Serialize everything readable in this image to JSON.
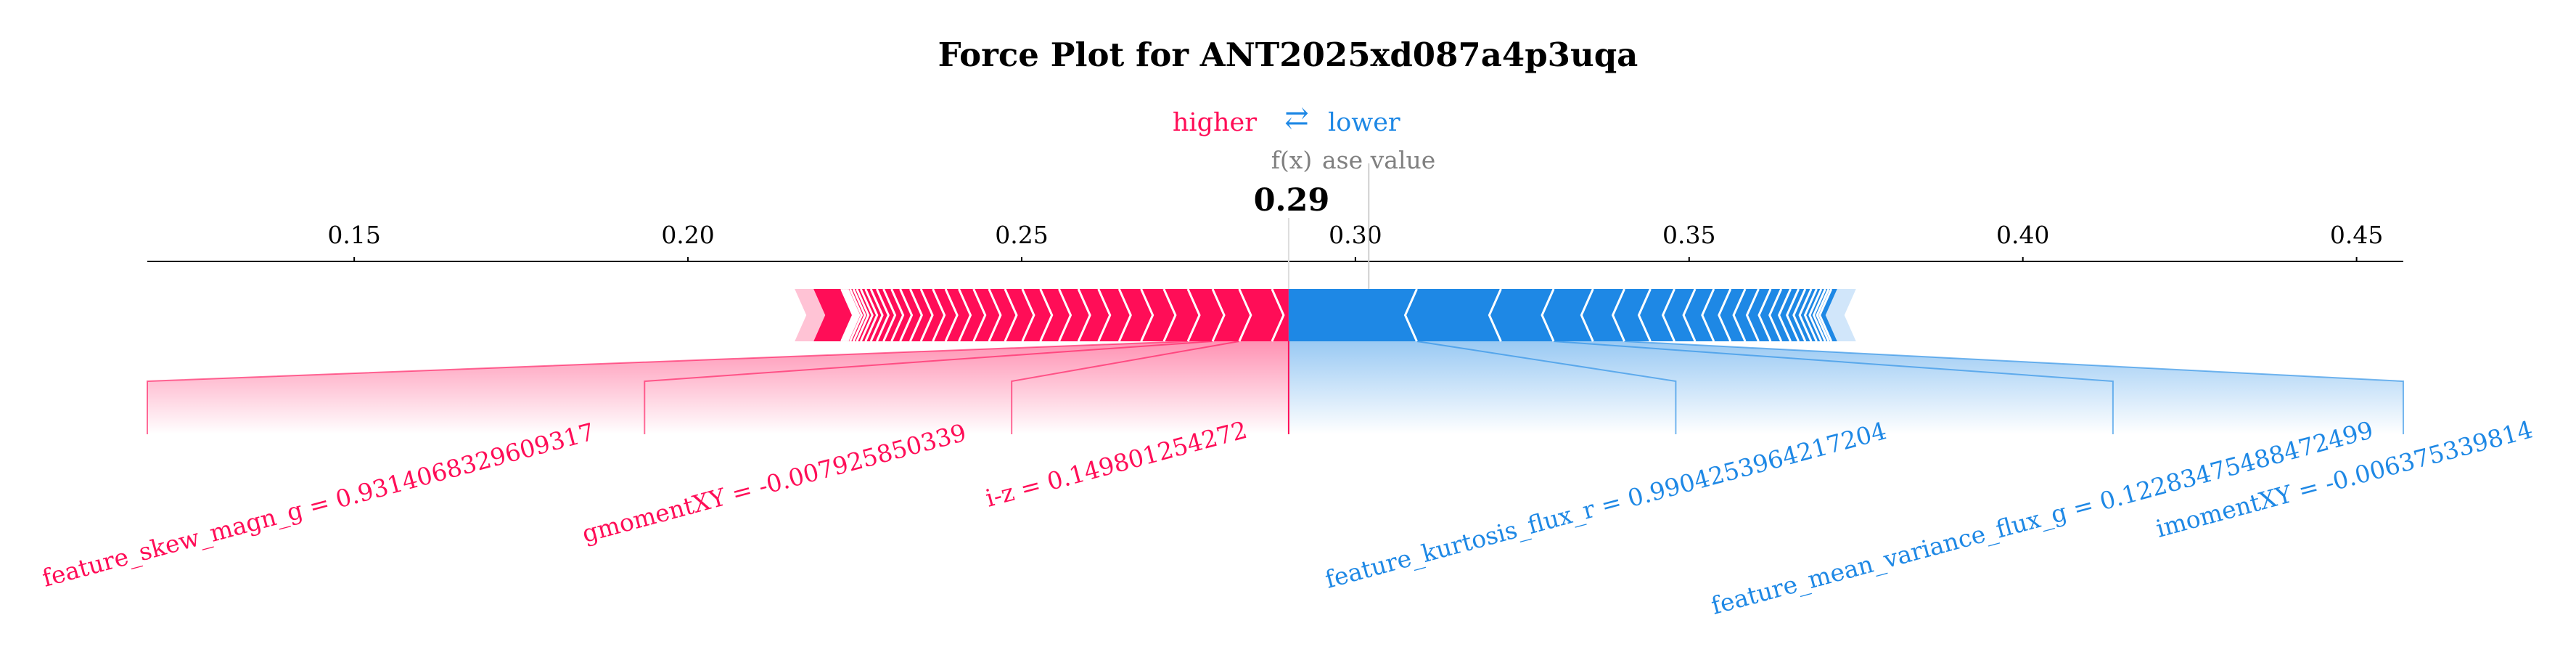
{
  "chart_data": {
    "type": "force",
    "title": "Force Plot for ANT2025xd087a4p3uqa",
    "legend": {
      "higher": "higher",
      "lower": "lower",
      "arrow": "⇄"
    },
    "fx_label": "f(x)",
    "base_value_label": "ase value",
    "output_value": 0.29,
    "output_value_text": "0.29",
    "base_value": 0.302,
    "xlim": [
      0.119,
      0.457
    ],
    "ticks": [
      {
        "value": 0.15,
        "label": "0.15"
      },
      {
        "value": 0.2,
        "label": "0.20"
      },
      {
        "value": 0.25,
        "label": "0.25"
      },
      {
        "value": 0.3,
        "label": "0.30"
      },
      {
        "value": 0.35,
        "label": "0.35"
      },
      {
        "value": 0.4,
        "label": "0.40"
      },
      {
        "value": 0.45,
        "label": "0.45"
      }
    ],
    "positive_bar": [
      0.216,
      0.289
    ],
    "negative_bar": [
      0.289,
      0.375
    ],
    "positive_boundaries": [
      0.2875,
      0.2826,
      0.2786,
      0.2749,
      0.2713,
      0.2679,
      0.2646,
      0.2615,
      0.2585,
      0.2556,
      0.2528,
      0.2501,
      0.2475,
      0.2451,
      0.2428,
      0.2406,
      0.2386,
      0.2367,
      0.2349,
      0.2333,
      0.2318,
      0.2305,
      0.2293,
      0.2283,
      0.2274,
      0.2266,
      0.2259,
      0.2253,
      0.2248,
      0.2243,
      0.2239,
      0.2236,
      0.2233,
      0.223
    ],
    "negative_boundaries": [
      0.3092,
      0.3218,
      0.3297,
      0.3356,
      0.3403,
      0.3442,
      0.3478,
      0.3509,
      0.3537,
      0.3562,
      0.3584,
      0.3604,
      0.3622,
      0.3638,
      0.3652,
      0.3664,
      0.3674,
      0.3683,
      0.3691,
      0.3698,
      0.3704,
      0.3709,
      0.3713
    ],
    "features": [
      {
        "label": "feature_skew_magn_g = 0.9314068329609317",
        "effect": "higher",
        "seg": [
          0.2749,
          0.2826
        ],
        "anchor": 0.119
      },
      {
        "label": "gmomentXY = -0.007925850339",
        "effect": "higher",
        "seg": [
          0.2786,
          0.2826
        ],
        "anchor": 0.1935
      },
      {
        "label": "i-z = 0.149801254272",
        "effect": "higher",
        "seg": [
          0.2826,
          0.2875
        ],
        "anchor": 0.2485
      },
      {
        "label": "feature_kurtosis_flux_r = 0.9904253964217204",
        "effect": "lower",
        "seg": [
          0.2893,
          0.3092
        ],
        "anchor": 0.348
      },
      {
        "label": "feature_mean_variance_flux_g = 0.12283475488472499",
        "effect": "lower",
        "seg": [
          0.3092,
          0.3297
        ],
        "anchor": 0.4135
      },
      {
        "label": "imomentXY = -0.006375339814",
        "effect": "lower",
        "seg": [
          0.3297,
          0.3403
        ],
        "anchor": 0.457
      }
    ],
    "colors": {
      "positive": "#ff0d57",
      "negative": "#1e88e5",
      "positive_light": "#ffc3d5",
      "negative_light": "#d1e6fa",
      "gray": "#808080"
    }
  }
}
